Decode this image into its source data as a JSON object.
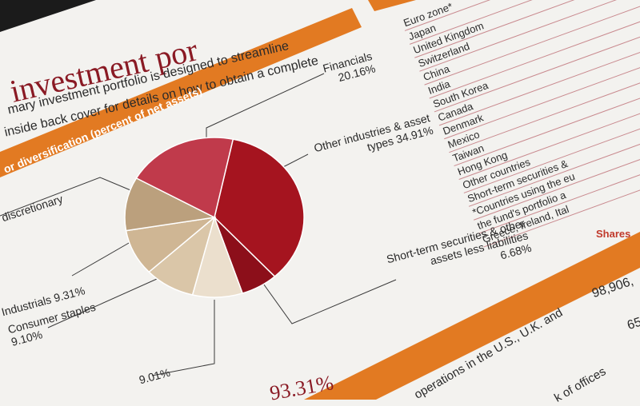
{
  "header": {
    "title": "investment por",
    "lines": [
      "mary investment portfolio is designed to streamline",
      "inside back cover for details on how to obtain a complete"
    ],
    "section": "or diversification (percent of net assets)"
  },
  "chart_data": {
    "type": "pie",
    "categories": [
      "Other industries & asset types",
      "Short-term securities & other assets less liabilities",
      null,
      "Consumer staples",
      "Industrials",
      "discretionary",
      "Financials"
    ],
    "values": [
      34.91,
      6.68,
      9.01,
      9.1,
      9.31,
      10.83,
      20.16
    ],
    "value_labels": [
      "34.91%",
      "6.68%",
      "9.01%",
      "9.10%",
      "9.31%",
      null,
      "20.16%"
    ],
    "colors": [
      "#a5141f",
      "#8c0f1a",
      "#ebdfcd",
      "#dac6a8",
      "#cfb694",
      "#bba07d",
      "#c03a4b"
    ]
  },
  "country_list": [
    "Euro zone*",
    "Japan",
    "United Kingdom",
    "Switzerland",
    "China",
    "India",
    "South Korea",
    "Canada",
    "Denmark",
    "Mexico",
    "Taiwan",
    "Hong Kong",
    "Other countries",
    "Short-term securities &",
    "*Countries using the eu",
    "the fund's portfolio a",
    "Greece, Ireland, Ital"
  ],
  "shares": {
    "heading": "Shares",
    "values": [
      "98,906,",
      "65"
    ]
  },
  "total": "93.31%",
  "footer_lines": [
    "operations in the U.S., U.K. and",
    "k of offices"
  ]
}
